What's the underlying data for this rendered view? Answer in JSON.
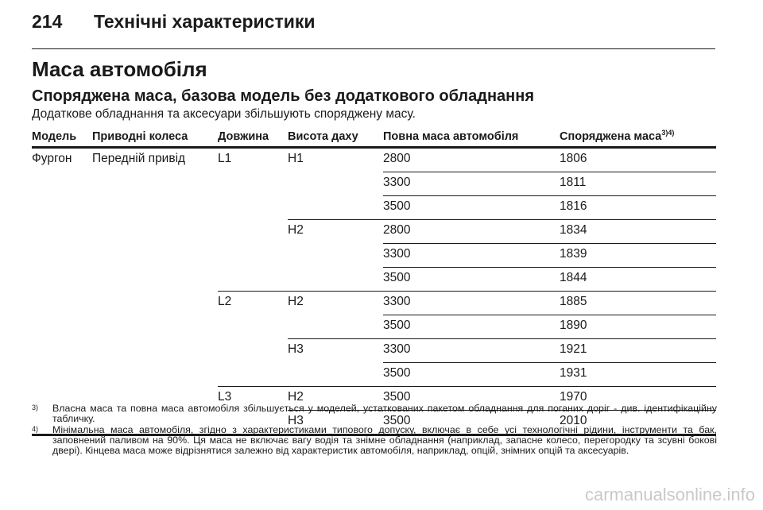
{
  "page": {
    "number": "214",
    "title": "Технічні характеристики"
  },
  "section": {
    "title": "Маса автомобіля",
    "subtitle": "Споряджена маса, базова модель без додаткового обладнання",
    "intro": "Додаткове обладнання та аксесуари збільшують споряджену масу."
  },
  "table": {
    "headers": [
      "Модель",
      "Приводні колеса",
      "Довжина",
      "Висота даху",
      "Повна маса автомобіля",
      "Споряджена маса"
    ],
    "header_sup": "3)4)",
    "rows": [
      [
        "Фургон",
        "Передній привід",
        "L1",
        "H1",
        "2800",
        "1806"
      ],
      [
        "",
        "",
        "",
        "",
        "3300",
        "1811"
      ],
      [
        "",
        "",
        "",
        "",
        "3500",
        "1816"
      ],
      [
        "",
        "",
        "",
        "H2",
        "2800",
        "1834"
      ],
      [
        "",
        "",
        "",
        "",
        "3300",
        "1839"
      ],
      [
        "",
        "",
        "",
        "",
        "3500",
        "1844"
      ],
      [
        "",
        "",
        "L2",
        "H2",
        "3300",
        "1885"
      ],
      [
        "",
        "",
        "",
        "",
        "3500",
        "1890"
      ],
      [
        "",
        "",
        "",
        "H3",
        "3300",
        "1921"
      ],
      [
        "",
        "",
        "",
        "",
        "3500",
        "1931"
      ],
      [
        "",
        "",
        "L3",
        "H2",
        "3500",
        "1970"
      ],
      [
        "",
        "",
        "",
        "H3",
        "3500",
        "2010"
      ]
    ]
  },
  "footnotes": [
    {
      "mark": "3)",
      "text": "Власна маса та повна маса автомобіля збільшується у моделей, устаткованих пакетом обладнання для поганих доріг - див. ідентифікаційну табличку."
    },
    {
      "mark": "4)",
      "text": "Мінімальна маса автомобіля, згідно з характеристиками типового допуску, включає в себе усі технологічні рідини, інструменти та бак, заповнений паливом на 90%. Ця маса не включає вагу водія та знімне обладнання (наприклад, запасне колесо, перегородку та зсувні бокові двері). Кінцева маса може відрізнятися залежно від характеристик автомобіля, наприклад, опцій, знімних опцій та аксесуарів."
    }
  ],
  "watermark": "carmanualsonline.info"
}
